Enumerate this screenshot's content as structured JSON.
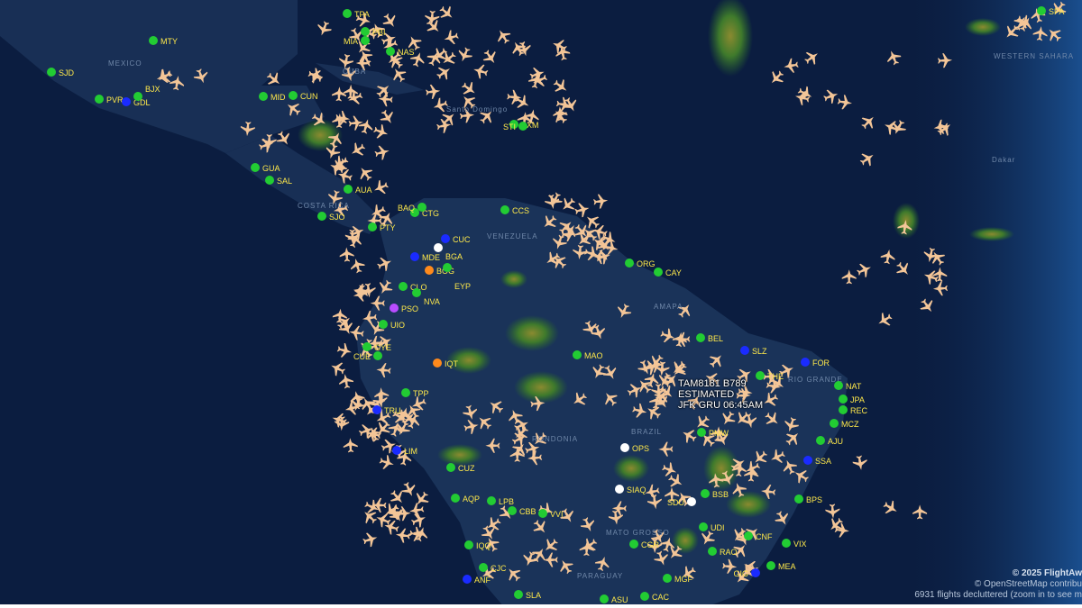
{
  "map": {
    "background_color": "#0b1d40",
    "land_color": "#182f55",
    "plane_color": "#f3c597",
    "airport_status_colors": {
      "green": "#22cc33",
      "blue": "#1a2bff",
      "white": "#ffffff",
      "orange": "#ff8a1c",
      "purple": "#b84cff"
    },
    "region_labels": [
      "MEXICO",
      "CUBA",
      "COSTA RICA",
      "VENEZUELA",
      "AMAPA",
      "BRAZIL",
      "RIO GRANDE",
      "RONDONIA",
      "MATO GROSSO",
      "PARAGUAY",
      "WESTERN SAHARA",
      "Dakar",
      "Santo Domingo"
    ],
    "airports": [
      {
        "code": "SJD",
        "status": "green"
      },
      {
        "code": "MTY",
        "status": "green"
      },
      {
        "code": "PVR",
        "status": "green"
      },
      {
        "code": "GDL",
        "status": "blue"
      },
      {
        "code": "BJX",
        "status": "green"
      },
      {
        "code": "MID",
        "status": "green"
      },
      {
        "code": "CUN",
        "status": "green"
      },
      {
        "code": "NAS",
        "status": "green"
      },
      {
        "code": "PBI",
        "status": "green"
      },
      {
        "code": "MIA",
        "status": "green"
      },
      {
        "code": "TPA",
        "status": "green"
      },
      {
        "code": "GUA",
        "status": "green"
      },
      {
        "code": "SAL",
        "status": "green"
      },
      {
        "code": "SJO",
        "status": "green"
      },
      {
        "code": "PTY",
        "status": "green"
      },
      {
        "code": "AUA",
        "status": "green"
      },
      {
        "code": "CTG",
        "status": "green"
      },
      {
        "code": "BAQ",
        "status": "green"
      },
      {
        "code": "MDE",
        "status": "blue"
      },
      {
        "code": "BOG",
        "status": "orange"
      },
      {
        "code": "CUC",
        "status": "blue"
      },
      {
        "code": "BGA",
        "status": "white"
      },
      {
        "code": "EYP",
        "status": "green"
      },
      {
        "code": "CLO",
        "status": "green"
      },
      {
        "code": "NVA",
        "status": "green"
      },
      {
        "code": "PSO",
        "status": "purple"
      },
      {
        "code": "UIO",
        "status": "green"
      },
      {
        "code": "GYE",
        "status": "green"
      },
      {
        "code": "CUE",
        "status": "green"
      },
      {
        "code": "TPP",
        "status": "green"
      },
      {
        "code": "TRU",
        "status": "blue"
      },
      {
        "code": "LIM",
        "status": "blue"
      },
      {
        "code": "CUZ",
        "status": "green"
      },
      {
        "code": "AQP",
        "status": "green"
      },
      {
        "code": "LPB",
        "status": "green"
      },
      {
        "code": "CBB",
        "status": "green"
      },
      {
        "code": "VVI",
        "status": "green"
      },
      {
        "code": "IQQ",
        "status": "green"
      },
      {
        "code": "CJC",
        "status": "green"
      },
      {
        "code": "ANF",
        "status": "blue"
      },
      {
        "code": "SLA",
        "status": "green"
      },
      {
        "code": "CCS",
        "status": "green"
      },
      {
        "code": "ORG",
        "status": "green"
      },
      {
        "code": "CAY",
        "status": "green"
      },
      {
        "code": "BEL",
        "status": "green"
      },
      {
        "code": "SLZ",
        "status": "blue"
      },
      {
        "code": "FOR",
        "status": "blue"
      },
      {
        "code": "THE",
        "status": "green"
      },
      {
        "code": "NAT",
        "status": "green"
      },
      {
        "code": "JPA",
        "status": "green"
      },
      {
        "code": "REC",
        "status": "green"
      },
      {
        "code": "MCZ",
        "status": "green"
      },
      {
        "code": "AJU",
        "status": "green"
      },
      {
        "code": "SSA",
        "status": "blue"
      },
      {
        "code": "BPS",
        "status": "green"
      },
      {
        "code": "MAO",
        "status": "green"
      },
      {
        "code": "OPS",
        "status": "white"
      },
      {
        "code": "SIAQ",
        "status": "white"
      },
      {
        "code": "PMW",
        "status": "green"
      },
      {
        "code": "BSB",
        "status": "green"
      },
      {
        "code": "CNF",
        "status": "green"
      },
      {
        "code": "VIX",
        "status": "green"
      },
      {
        "code": "CGR",
        "status": "green"
      },
      {
        "code": "MEA",
        "status": "green"
      },
      {
        "code": "GIG",
        "status": "blue"
      },
      {
        "code": "IQT",
        "status": "orange"
      },
      {
        "code": "SDU",
        "status": "white"
      },
      {
        "code": "UDI",
        "status": "green"
      },
      {
        "code": "RAO",
        "status": "green"
      },
      {
        "code": "MGF",
        "status": "green"
      },
      {
        "code": "CAC",
        "status": "green"
      },
      {
        "code": "ASU",
        "status": "green"
      },
      {
        "code": "SXM",
        "status": "green"
      },
      {
        "code": "STI",
        "status": "green"
      },
      {
        "code": "SPA",
        "status": "green"
      }
    ]
  },
  "flight_tooltip": {
    "line1": "TAM8181 B789",
    "line2": "ESTIMATED",
    "line3": "JFK GRU 06:45AM"
  },
  "attribution": {
    "copyright": "© 2025 FlightAw",
    "osm": "© OpenStreetMap contribu",
    "declutter": "6931 flights decluttered (zoom in to see m"
  }
}
